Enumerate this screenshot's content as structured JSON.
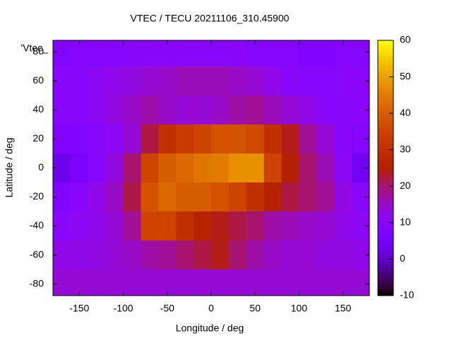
{
  "chart_data": {
    "type": "heatmap",
    "title": "VTEC / TECU 20211106_310.45900",
    "xlabel": "Longitude / deg",
    "ylabel": "Latitude / deg",
    "key_label": "'Vtec_",
    "x": [
      -170,
      -150,
      -130,
      -110,
      -90,
      -70,
      -50,
      -30,
      -10,
      10,
      30,
      50,
      70,
      90,
      110,
      130,
      150,
      170
    ],
    "y": [
      80,
      60,
      40,
      20,
      0,
      -20,
      -40,
      -60,
      -80
    ],
    "z": [
      [
        8,
        9,
        9,
        9,
        10,
        10,
        10,
        10,
        10,
        10,
        10,
        9,
        9,
        9,
        8,
        8,
        9,
        9
      ],
      [
        10,
        10,
        11,
        12,
        13,
        14,
        15,
        16,
        16,
        16,
        15,
        14,
        12,
        10,
        9,
        9,
        10,
        10
      ],
      [
        10,
        10,
        11,
        13,
        15,
        17,
        15,
        14,
        14,
        15,
        17,
        18,
        16,
        14,
        12,
        10,
        10,
        10
      ],
      [
        8,
        8,
        9,
        11,
        14,
        22,
        30,
        33,
        35,
        38,
        38,
        36,
        30,
        24,
        18,
        14,
        10,
        9
      ],
      [
        3,
        6,
        9,
        13,
        20,
        35,
        40,
        42,
        44,
        45,
        48,
        48,
        35,
        25,
        20,
        16,
        11,
        4
      ],
      [
        8,
        10,
        12,
        15,
        22,
        38,
        42,
        40,
        40,
        38,
        35,
        30,
        25,
        22,
        20,
        18,
        13,
        10
      ],
      [
        10,
        11,
        12,
        14,
        18,
        35,
        35,
        30,
        26,
        24,
        22,
        20,
        17,
        16,
        15,
        14,
        12,
        11
      ],
      [
        12,
        12,
        13,
        14,
        15,
        17,
        18,
        20,
        22,
        24,
        20,
        17,
        15,
        14,
        14,
        13,
        13,
        12
      ],
      [
        14,
        14,
        14,
        14,
        14,
        14,
        14,
        14,
        14,
        14,
        14,
        14,
        14,
        14,
        14,
        14,
        14,
        14
      ]
    ],
    "xlim": [
      -180,
      180
    ],
    "ylim": [
      -88,
      88
    ],
    "xticks": [
      -150,
      -100,
      -50,
      0,
      50,
      100,
      150
    ],
    "yticks": [
      -80,
      -60,
      -40,
      -20,
      0,
      20,
      40,
      60,
      80
    ],
    "cblim": [
      -10,
      60
    ],
    "cbticks": [
      -10,
      0,
      10,
      20,
      30,
      40,
      50,
      60
    ],
    "palette": "rgbformulae-7-5-15"
  }
}
